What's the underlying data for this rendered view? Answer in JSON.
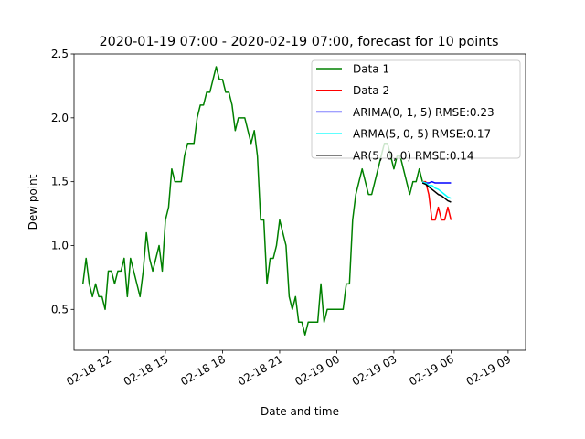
{
  "chart_data": {
    "type": "line",
    "title": "2020-01-19 07:00 - 2020-02-19 07:00, forecast for 10 points",
    "xlabel": "Date and time",
    "ylabel": "Dew point",
    "xlim": [
      "2020-02-18 10:12",
      "2020-02-19 09:55"
    ],
    "ylim": [
      0.18,
      2.5
    ],
    "x_tick_labels": [
      "02-18 12",
      "02-18 15",
      "02-18 18",
      "02-18 21",
      "02-19 00",
      "02-19 03",
      "02-19 06",
      "02-19 09"
    ],
    "y_tick_labels": [
      "0.5",
      "1.0",
      "1.5",
      "2.0",
      "2.5"
    ],
    "grid": false,
    "legend_position": "top-right",
    "series": [
      {
        "name": "Data 1",
        "color": "#008000",
        "points": [
          [
            "2020-02-18 10:40",
            0.7
          ],
          [
            "2020-02-18 10:50",
            0.9
          ],
          [
            "2020-02-18 11:00",
            0.7
          ],
          [
            "2020-02-18 11:10",
            0.6
          ],
          [
            "2020-02-18 11:20",
            0.7
          ],
          [
            "2020-02-18 11:30",
            0.6
          ],
          [
            "2020-02-18 11:40",
            0.6
          ],
          [
            "2020-02-18 11:50",
            0.5
          ],
          [
            "2020-02-18 12:00",
            0.8
          ],
          [
            "2020-02-18 12:10",
            0.8
          ],
          [
            "2020-02-18 12:20",
            0.7
          ],
          [
            "2020-02-18 12:30",
            0.8
          ],
          [
            "2020-02-18 12:40",
            0.8
          ],
          [
            "2020-02-18 12:50",
            0.9
          ],
          [
            "2020-02-18 13:00",
            0.6
          ],
          [
            "2020-02-18 13:10",
            0.9
          ],
          [
            "2020-02-18 13:20",
            0.8
          ],
          [
            "2020-02-18 13:30",
            0.7
          ],
          [
            "2020-02-18 13:40",
            0.6
          ],
          [
            "2020-02-18 13:50",
            0.8
          ],
          [
            "2020-02-18 14:00",
            1.1
          ],
          [
            "2020-02-18 14:10",
            0.9
          ],
          [
            "2020-02-18 14:20",
            0.8
          ],
          [
            "2020-02-18 14:30",
            0.9
          ],
          [
            "2020-02-18 14:40",
            1.0
          ],
          [
            "2020-02-18 14:50",
            0.8
          ],
          [
            "2020-02-18 15:00",
            1.2
          ],
          [
            "2020-02-18 15:10",
            1.3
          ],
          [
            "2020-02-18 15:20",
            1.6
          ],
          [
            "2020-02-18 15:30",
            1.5
          ],
          [
            "2020-02-18 15:40",
            1.5
          ],
          [
            "2020-02-18 15:50",
            1.5
          ],
          [
            "2020-02-18 16:00",
            1.7
          ],
          [
            "2020-02-18 16:10",
            1.8
          ],
          [
            "2020-02-18 16:20",
            1.8
          ],
          [
            "2020-02-18 16:30",
            1.8
          ],
          [
            "2020-02-18 16:40",
            2.0
          ],
          [
            "2020-02-18 16:50",
            2.1
          ],
          [
            "2020-02-18 17:00",
            2.1
          ],
          [
            "2020-02-18 17:10",
            2.2
          ],
          [
            "2020-02-18 17:20",
            2.2
          ],
          [
            "2020-02-18 17:30",
            2.3
          ],
          [
            "2020-02-18 17:40",
            2.4
          ],
          [
            "2020-02-18 17:50",
            2.3
          ],
          [
            "2020-02-18 18:00",
            2.3
          ],
          [
            "2020-02-18 18:10",
            2.2
          ],
          [
            "2020-02-18 18:20",
            2.2
          ],
          [
            "2020-02-18 18:30",
            2.1
          ],
          [
            "2020-02-18 18:40",
            1.9
          ],
          [
            "2020-02-18 18:50",
            2.0
          ],
          [
            "2020-02-18 19:00",
            2.0
          ],
          [
            "2020-02-18 19:10",
            2.0
          ],
          [
            "2020-02-18 19:20",
            1.9
          ],
          [
            "2020-02-18 19:30",
            1.8
          ],
          [
            "2020-02-18 19:40",
            1.9
          ],
          [
            "2020-02-18 19:50",
            1.7
          ],
          [
            "2020-02-18 20:00",
            1.2
          ],
          [
            "2020-02-18 20:10",
            1.2
          ],
          [
            "2020-02-18 20:20",
            0.7
          ],
          [
            "2020-02-18 20:30",
            0.9
          ],
          [
            "2020-02-18 20:40",
            0.9
          ],
          [
            "2020-02-18 20:50",
            1.0
          ],
          [
            "2020-02-18 21:00",
            1.2
          ],
          [
            "2020-02-18 21:10",
            1.1
          ],
          [
            "2020-02-18 21:20",
            1.0
          ],
          [
            "2020-02-18 21:30",
            0.6
          ],
          [
            "2020-02-18 21:40",
            0.5
          ],
          [
            "2020-02-18 21:50",
            0.6
          ],
          [
            "2020-02-18 22:00",
            0.4
          ],
          [
            "2020-02-18 22:10",
            0.4
          ],
          [
            "2020-02-18 22:20",
            0.3
          ],
          [
            "2020-02-18 22:30",
            0.4
          ],
          [
            "2020-02-18 22:40",
            0.4
          ],
          [
            "2020-02-18 22:50",
            0.4
          ],
          [
            "2020-02-18 23:00",
            0.4
          ],
          [
            "2020-02-18 23:10",
            0.7
          ],
          [
            "2020-02-18 23:20",
            0.4
          ],
          [
            "2020-02-18 23:30",
            0.5
          ],
          [
            "2020-02-18 23:40",
            0.5
          ],
          [
            "2020-02-18 23:50",
            0.5
          ],
          [
            "2020-02-19 00:00",
            0.5
          ],
          [
            "2020-02-19 00:10",
            0.5
          ],
          [
            "2020-02-19 00:20",
            0.5
          ],
          [
            "2020-02-19 00:30",
            0.7
          ],
          [
            "2020-02-19 00:40",
            0.7
          ],
          [
            "2020-02-19 00:50",
            1.2
          ],
          [
            "2020-02-19 01:00",
            1.4
          ],
          [
            "2020-02-19 01:10",
            1.5
          ],
          [
            "2020-02-19 01:20",
            1.6
          ],
          [
            "2020-02-19 01:30",
            1.5
          ],
          [
            "2020-02-19 01:40",
            1.4
          ],
          [
            "2020-02-19 01:50",
            1.4
          ],
          [
            "2020-02-19 02:00",
            1.5
          ],
          [
            "2020-02-19 02:10",
            1.6
          ],
          [
            "2020-02-19 02:20",
            1.7
          ],
          [
            "2020-02-19 02:30",
            1.8
          ],
          [
            "2020-02-19 02:40",
            1.8
          ],
          [
            "2020-02-19 02:50",
            1.7
          ],
          [
            "2020-02-19 03:00",
            1.6
          ],
          [
            "2020-02-19 03:10",
            1.7
          ],
          [
            "2020-02-19 03:20",
            1.7
          ],
          [
            "2020-02-19 03:30",
            1.6
          ],
          [
            "2020-02-19 03:40",
            1.5
          ],
          [
            "2020-02-19 03:50",
            1.4
          ],
          [
            "2020-02-19 04:00",
            1.5
          ],
          [
            "2020-02-19 04:10",
            1.5
          ],
          [
            "2020-02-19 04:20",
            1.6
          ],
          [
            "2020-02-19 04:30",
            1.5
          ]
        ]
      },
      {
        "name": "Data 2",
        "color": "#ff0000",
        "points": [
          [
            "2020-02-19 04:30",
            1.5
          ],
          [
            "2020-02-19 04:40",
            1.5
          ],
          [
            "2020-02-19 04:50",
            1.4
          ],
          [
            "2020-02-19 05:00",
            1.2
          ],
          [
            "2020-02-19 05:10",
            1.2
          ],
          [
            "2020-02-19 05:20",
            1.3
          ],
          [
            "2020-02-19 05:30",
            1.2
          ],
          [
            "2020-02-19 05:40",
            1.2
          ],
          [
            "2020-02-19 05:50",
            1.3
          ],
          [
            "2020-02-19 06:00",
            1.2
          ]
        ]
      },
      {
        "name": "ARIMA(0, 1, 5) RMSE:0.23",
        "color": "#0000ff",
        "points": [
          [
            "2020-02-19 04:30",
            1.49
          ],
          [
            "2020-02-19 04:40",
            1.49
          ],
          [
            "2020-02-19 04:50",
            1.49
          ],
          [
            "2020-02-19 05:00",
            1.5
          ],
          [
            "2020-02-19 05:10",
            1.49
          ],
          [
            "2020-02-19 05:20",
            1.49
          ],
          [
            "2020-02-19 05:30",
            1.49
          ],
          [
            "2020-02-19 05:40",
            1.49
          ],
          [
            "2020-02-19 05:50",
            1.49
          ],
          [
            "2020-02-19 06:00",
            1.49
          ]
        ]
      },
      {
        "name": "ARMA(5, 0, 5) RMSE:0.17",
        "color": "#00ffff",
        "points": [
          [
            "2020-02-19 04:30",
            1.5
          ],
          [
            "2020-02-19 04:40",
            1.49
          ],
          [
            "2020-02-19 04:50",
            1.47
          ],
          [
            "2020-02-19 05:00",
            1.47
          ],
          [
            "2020-02-19 05:10",
            1.45
          ],
          [
            "2020-02-19 05:20",
            1.44
          ],
          [
            "2020-02-19 05:30",
            1.42
          ],
          [
            "2020-02-19 05:40",
            1.4
          ],
          [
            "2020-02-19 05:50",
            1.38
          ],
          [
            "2020-02-19 06:00",
            1.37
          ]
        ]
      },
      {
        "name": "AR(5, 0, 0) RMSE:0.14",
        "color": "#000000",
        "points": [
          [
            "2020-02-19 04:30",
            1.49
          ],
          [
            "2020-02-19 04:40",
            1.48
          ],
          [
            "2020-02-19 04:50",
            1.46
          ],
          [
            "2020-02-19 05:00",
            1.44
          ],
          [
            "2020-02-19 05:10",
            1.42
          ],
          [
            "2020-02-19 05:20",
            1.4
          ],
          [
            "2020-02-19 05:30",
            1.39
          ],
          [
            "2020-02-19 05:40",
            1.37
          ],
          [
            "2020-02-19 05:50",
            1.35
          ],
          [
            "2020-02-19 06:00",
            1.34
          ]
        ]
      }
    ]
  }
}
